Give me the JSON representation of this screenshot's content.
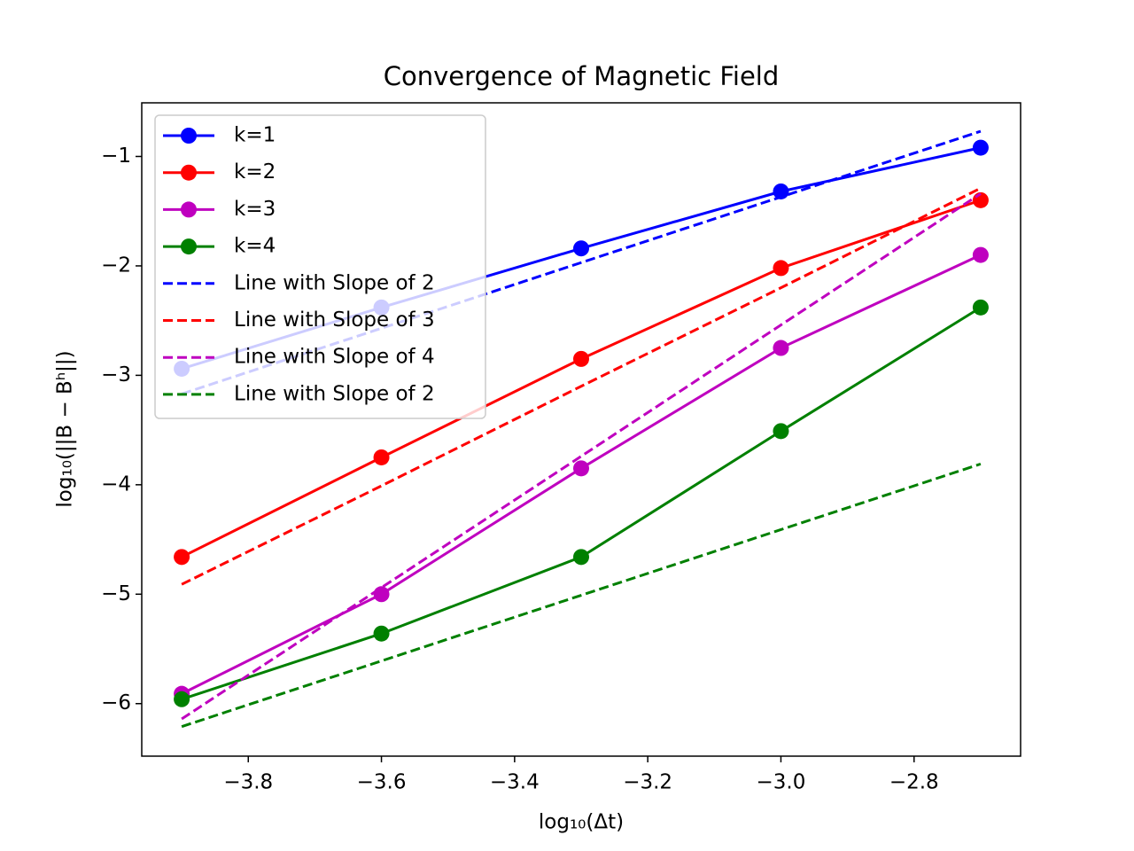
{
  "chart_data": {
    "type": "line",
    "title": "Convergence of Magnetic Field",
    "xlabel": "log₁₀(Δt)",
    "ylabel": "log₁₀(||B − Bʰ||)",
    "x": [
      -3.9,
      -3.6,
      -3.3,
      -3.0,
      -2.7
    ],
    "series": [
      {
        "name": "k=1",
        "color": "#0000ff",
        "linestyle": "solid",
        "marker": "o",
        "values": [
          -2.94,
          -2.38,
          -1.84,
          -1.32,
          -0.92
        ]
      },
      {
        "name": "k=2",
        "color": "#ff0000",
        "linestyle": "solid",
        "marker": "o",
        "values": [
          -4.66,
          -3.75,
          -2.85,
          -2.02,
          -1.4
        ]
      },
      {
        "name": "k=3",
        "color": "#bf00bf",
        "linestyle": "solid",
        "marker": "o",
        "values": [
          -5.91,
          -5.0,
          -3.85,
          -2.75,
          -1.9
        ]
      },
      {
        "name": "k=4",
        "color": "#008000",
        "linestyle": "solid",
        "marker": "o",
        "values": [
          -5.96,
          -5.36,
          -4.66,
          -3.51,
          -2.38
        ]
      },
      {
        "name": "Line with Slope of 2",
        "color": "#0000ff",
        "linestyle": "dashed",
        "values": [
          -3.17,
          -2.57,
          -1.97,
          -1.37,
          -0.77
        ]
      },
      {
        "name": "Line with Slope of 3",
        "color": "#ff0000",
        "linestyle": "dashed",
        "values": [
          -4.91,
          -4.01,
          -3.1,
          -2.2,
          -1.29
        ]
      },
      {
        "name": "Line with Slope of 4",
        "color": "#bf00bf",
        "linestyle": "dashed",
        "values": [
          -6.14,
          -4.94,
          -3.74,
          -2.54,
          -1.34
        ]
      },
      {
        "name": "Line with Slope of 2",
        "color": "#008000",
        "linestyle": "dashed",
        "values": [
          -6.21,
          -5.61,
          -5.01,
          -4.41,
          -3.81
        ]
      }
    ],
    "xlim": [
      -3.96,
      -2.64
    ],
    "xticks": [
      {
        "value": -3.8,
        "label": "−3.8"
      },
      {
        "value": -3.6,
        "label": "−3.6"
      },
      {
        "value": -3.4,
        "label": "−3.4"
      },
      {
        "value": -3.2,
        "label": "−3.2"
      },
      {
        "value": -3.0,
        "label": "−3.0"
      },
      {
        "value": -2.8,
        "label": "−2.8"
      }
    ],
    "ylim": [
      -6.48,
      -0.51
    ],
    "yticks": [
      {
        "value": -6,
        "label": "−6"
      },
      {
        "value": -5,
        "label": "−5"
      },
      {
        "value": -4,
        "label": "−4"
      },
      {
        "value": -3,
        "label": "−3"
      },
      {
        "value": -2,
        "label": "−2"
      },
      {
        "value": -1,
        "label": "−1"
      }
    ],
    "grid": false,
    "legend": "upper left"
  }
}
